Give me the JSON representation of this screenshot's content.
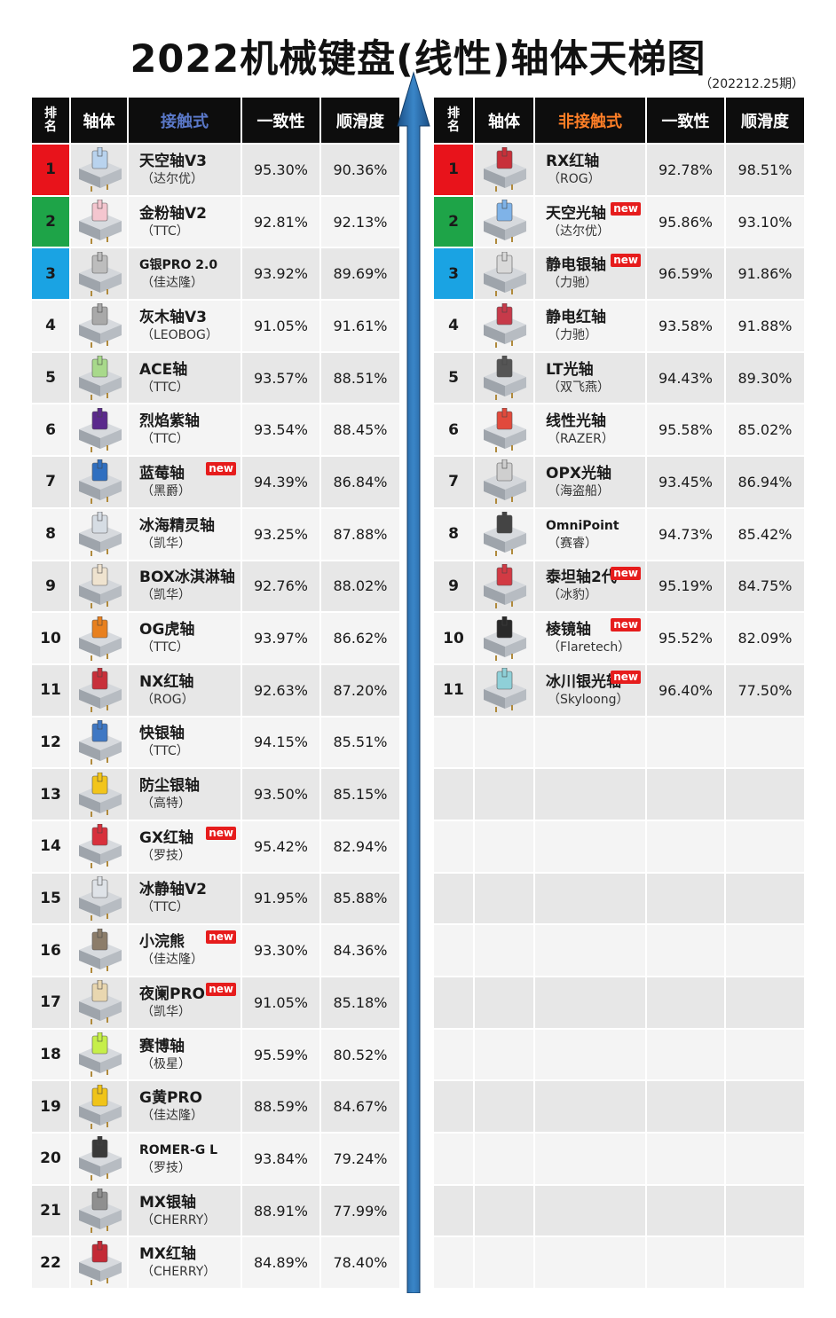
{
  "title": "2022机械键盘(线性)轴体天梯图",
  "issue": "（202212.25期）",
  "left": {
    "headers": {
      "rank_top": "排",
      "rank_bottom": "名",
      "switch": "轴体",
      "type": "接触式",
      "consistency": "一致性",
      "smoothness": "顺滑度"
    },
    "rows": [
      {
        "rank": "1",
        "name": "天空轴V3",
        "brand": "（达尔优）",
        "c": "95.30%",
        "s": "90.36%",
        "color": "#b9d3ee",
        "tag": ""
      },
      {
        "rank": "2",
        "name": "金粉轴V2",
        "brand": "（TTC）",
        "c": "92.81%",
        "s": "92.13%",
        "color": "#f4c6cf",
        "tag": ""
      },
      {
        "rank": "3",
        "name": "G银PRO 2.0",
        "brand": "（佳达隆）",
        "c": "93.92%",
        "s": "89.69%",
        "color": "#bdbdbd",
        "tag": ""
      },
      {
        "rank": "4",
        "name": "灰木轴V3",
        "brand": "（LEOBOG）",
        "c": "91.05%",
        "s": "91.61%",
        "color": "#a9a9a9",
        "tag": ""
      },
      {
        "rank": "5",
        "name": "ACE轴",
        "brand": "（TTC）",
        "c": "93.57%",
        "s": "88.51%",
        "color": "#a8d98b",
        "tag": ""
      },
      {
        "rank": "6",
        "name": "烈焰紫轴",
        "brand": "（TTC）",
        "c": "93.54%",
        "s": "88.45%",
        "color": "#5b2a8c",
        "tag": ""
      },
      {
        "rank": "7",
        "name": "蓝莓轴",
        "brand": "（黑爵）",
        "c": "94.39%",
        "s": "86.84%",
        "color": "#2f6fc0",
        "tag": "new"
      },
      {
        "rank": "8",
        "name": "冰海精灵轴",
        "brand": "（凯华）",
        "c": "93.25%",
        "s": "87.88%",
        "color": "#d6dde4",
        "tag": ""
      },
      {
        "rank": "9",
        "name": "BOX冰淇淋轴",
        "brand": "（凯华）",
        "c": "92.76%",
        "s": "88.02%",
        "color": "#efe3cf",
        "tag": ""
      },
      {
        "rank": "10",
        "name": "OG虎轴",
        "brand": "（TTC）",
        "c": "93.97%",
        "s": "86.62%",
        "color": "#e8801f",
        "tag": ""
      },
      {
        "rank": "11",
        "name": "NX红轴",
        "brand": "（ROG）",
        "c": "92.63%",
        "s": "87.20%",
        "color": "#c8303a",
        "tag": ""
      },
      {
        "rank": "12",
        "name": "快银轴",
        "brand": "（TTC）",
        "c": "94.15%",
        "s": "85.51%",
        "color": "#3f78c4",
        "tag": ""
      },
      {
        "rank": "13",
        "name": "防尘银轴",
        "brand": "（高特）",
        "c": "93.50%",
        "s": "85.15%",
        "color": "#f2c51b",
        "tag": ""
      },
      {
        "rank": "14",
        "name": "GX红轴",
        "brand": "（罗技）",
        "c": "95.42%",
        "s": "82.94%",
        "color": "#d8303c",
        "tag": "new"
      },
      {
        "rank": "15",
        "name": "冰静轴V2",
        "brand": "（TTC）",
        "c": "91.95%",
        "s": "85.88%",
        "color": "#dfe3e8",
        "tag": ""
      },
      {
        "rank": "16",
        "name": "小浣熊",
        "brand": "（佳达隆）",
        "c": "93.30%",
        "s": "84.36%",
        "color": "#8c7d6a",
        "tag": "new"
      },
      {
        "rank": "17",
        "name": "夜阑PRO",
        "brand": "（凯华）",
        "c": "91.05%",
        "s": "85.18%",
        "color": "#e9d7b0",
        "tag": "new"
      },
      {
        "rank": "18",
        "name": "赛博轴",
        "brand": "（极星）",
        "c": "95.59%",
        "s": "80.52%",
        "color": "#c6ef4a",
        "tag": ""
      },
      {
        "rank": "19",
        "name": "G黄PRO",
        "brand": "（佳达隆）",
        "c": "88.59%",
        "s": "84.67%",
        "color": "#f0c419",
        "tag": ""
      },
      {
        "rank": "20",
        "name": "ROMER-G L",
        "brand": "（罗技）",
        "c": "93.84%",
        "s": "79.24%",
        "color": "#3a3a3a",
        "tag": ""
      },
      {
        "rank": "21",
        "name": "MX银轴",
        "brand": "（CHERRY）",
        "c": "88.91%",
        "s": "77.99%",
        "color": "#8f8f8f",
        "tag": ""
      },
      {
        "rank": "22",
        "name": "MX红轴",
        "brand": "（CHERRY）",
        "c": "84.89%",
        "s": "78.40%",
        "color": "#c42a36",
        "tag": ""
      }
    ]
  },
  "right": {
    "headers": {
      "rank_top": "排",
      "rank_bottom": "名",
      "switch": "轴体",
      "type": "非接触式",
      "consistency": "一致性",
      "smoothness": "顺滑度"
    },
    "rows": [
      {
        "rank": "1",
        "name": "RX红轴",
        "brand": "（ROG）",
        "c": "92.78%",
        "s": "98.51%",
        "color": "#c8303a",
        "tag": ""
      },
      {
        "rank": "2",
        "name": "天空光轴",
        "brand": "（达尔优）",
        "c": "95.86%",
        "s": "93.10%",
        "color": "#7fb3e8",
        "tag": "new"
      },
      {
        "rank": "3",
        "name": "静电银轴",
        "brand": "（力驰）",
        "c": "96.59%",
        "s": "91.86%",
        "color": "#d9d9d9",
        "tag": "new"
      },
      {
        "rank": "4",
        "name": "静电红轴",
        "brand": "（力驰）",
        "c": "93.58%",
        "s": "91.88%",
        "color": "#c73a4a",
        "tag": ""
      },
      {
        "rank": "5",
        "name": "LT光轴",
        "brand": "（双飞燕）",
        "c": "94.43%",
        "s": "89.30%",
        "color": "#555555",
        "tag": ""
      },
      {
        "rank": "6",
        "name": "线性光轴",
        "brand": "（RAZER）",
        "c": "95.58%",
        "s": "85.02%",
        "color": "#e14a3c",
        "tag": ""
      },
      {
        "rank": "7",
        "name": "OPX光轴",
        "brand": "（海盗船）",
        "c": "93.45%",
        "s": "86.94%",
        "color": "#cfcfcf",
        "tag": ""
      },
      {
        "rank": "8",
        "name": "OmniPoint",
        "brand": "（赛睿）",
        "c": "94.73%",
        "s": "85.42%",
        "color": "#444444",
        "tag": ""
      },
      {
        "rank": "9",
        "name": "泰坦轴2代",
        "brand": "（冰豹）",
        "c": "95.19%",
        "s": "84.75%",
        "color": "#d23a44",
        "tag": "new"
      },
      {
        "rank": "10",
        "name": "棱镜轴",
        "brand": "（Flaretech）",
        "c": "95.52%",
        "s": "82.09%",
        "color": "#2a2a2a",
        "tag": "new"
      },
      {
        "rank": "11",
        "name": "冰川银光轴",
        "brand": "（Skyloong）",
        "c": "96.40%",
        "s": "77.50%",
        "color": "#8fd0d8",
        "tag": "new"
      }
    ],
    "empty_rows": 11
  }
}
